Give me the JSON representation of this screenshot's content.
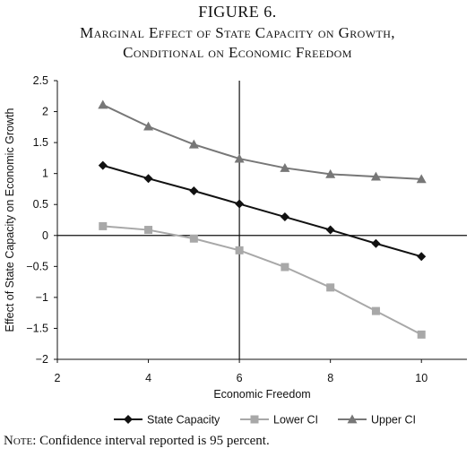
{
  "figure_label": "FIGURE 6.",
  "title_line1": "Marginal Effect of State Capacity on Growth,",
  "title_line2": "Conditional on Economic Freedom",
  "note_label": "Note:",
  "note_text": " Confidence interval reported is 95 percent.",
  "chart_data": {
    "type": "line",
    "xlabel": "Economic Freedom",
    "ylabel": "Effect of State Capacity on Economic Growth",
    "xlim": [
      2,
      11
    ],
    "ylim": [
      -2,
      2.5
    ],
    "x_ticks": [
      2,
      4,
      6,
      8,
      10
    ],
    "y_ticks": [
      2.5,
      2,
      1.5,
      1,
      0.5,
      0,
      -0.5,
      -1,
      -1.5,
      -2
    ],
    "x_tick_labels": [
      "2",
      "4",
      "6",
      "8",
      "10"
    ],
    "y_tick_labels": [
      "2.5",
      "2",
      "1.5",
      "1",
      "0.5",
      "0",
      "−0.5",
      "−1",
      "−1.5",
      "−2"
    ],
    "reference_lines": {
      "x": 6,
      "y": 0
    },
    "grid": false,
    "legend_position": "bottom",
    "x": [
      3,
      4,
      5,
      6,
      7,
      8,
      9,
      10
    ],
    "series": [
      {
        "name": "State Capacity",
        "color": "#111111",
        "marker": "diamond",
        "values": [
          1.13,
          0.92,
          0.72,
          0.51,
          0.3,
          0.09,
          -0.13,
          -0.34
        ]
      },
      {
        "name": "Lower CI",
        "color": "#a8a8a8",
        "marker": "square",
        "values": [
          0.15,
          0.09,
          -0.05,
          -0.24,
          -0.51,
          -0.84,
          -1.22,
          -1.6
        ]
      },
      {
        "name": "Upper CI",
        "color": "#777777",
        "marker": "triangle",
        "values": [
          2.11,
          1.76,
          1.47,
          1.24,
          1.09,
          0.99,
          0.95,
          0.91
        ]
      }
    ]
  }
}
